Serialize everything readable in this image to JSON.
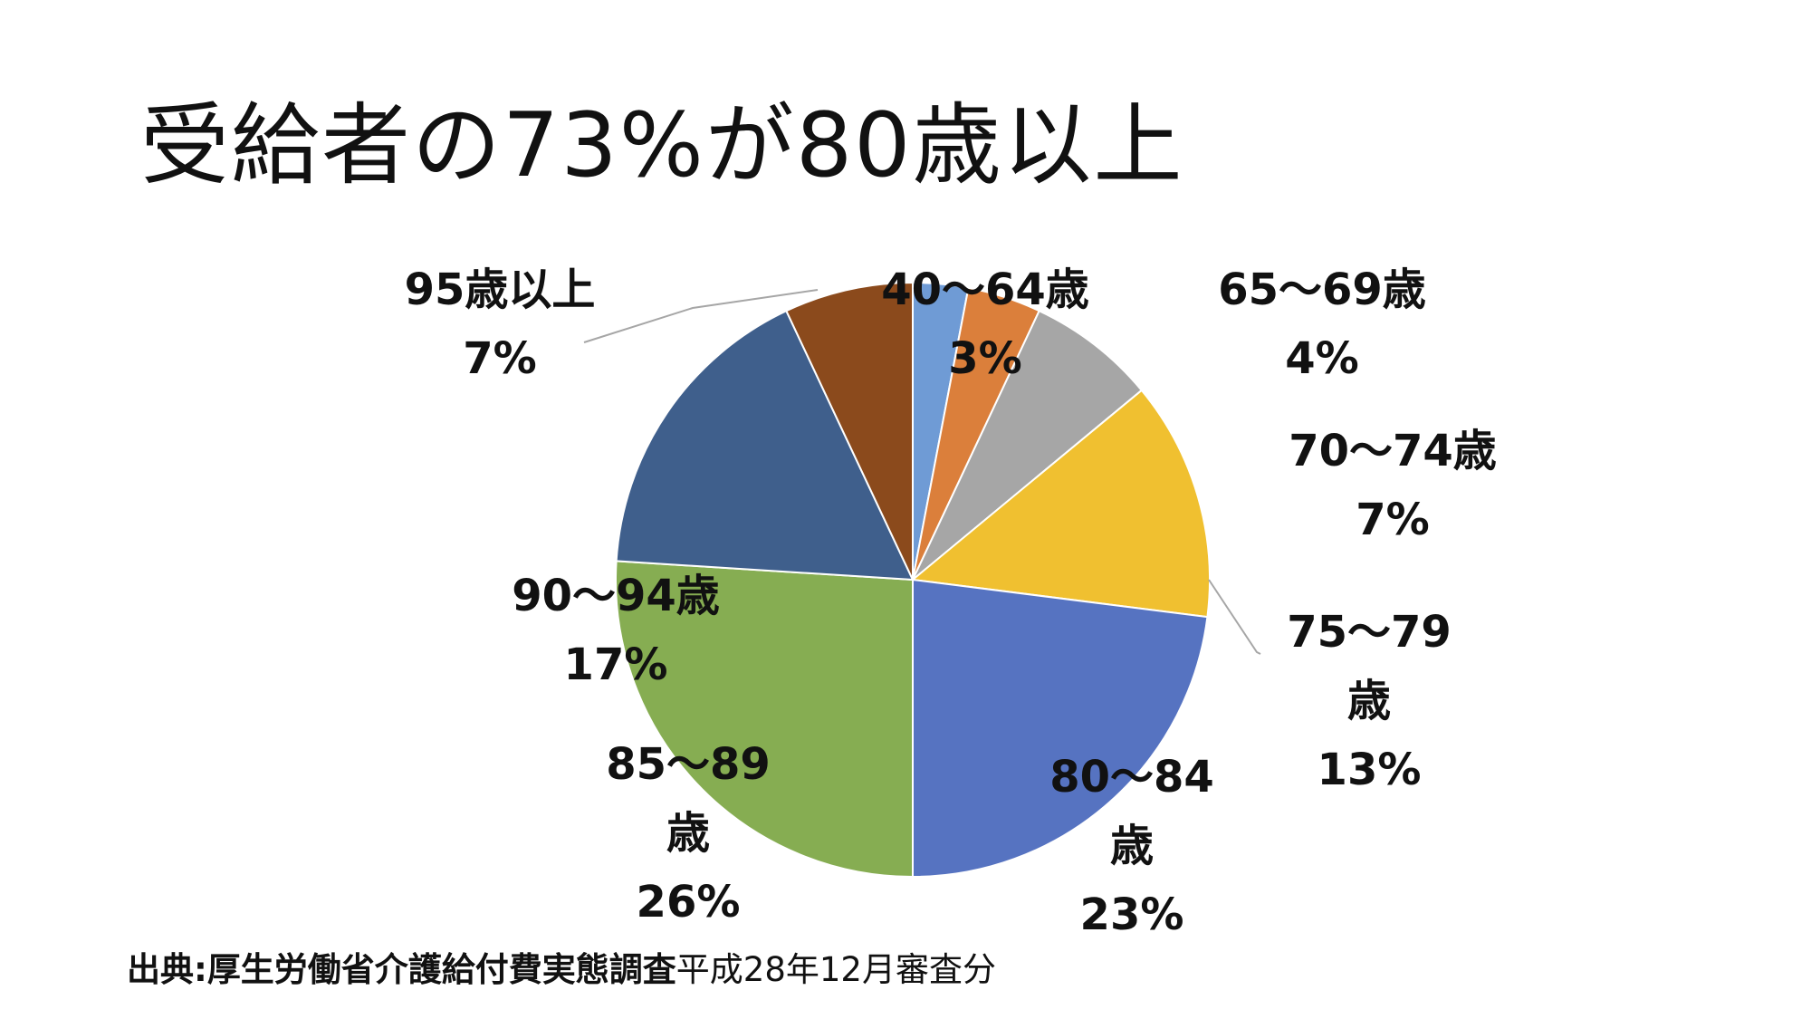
{
  "title": "受給者の73%が80歳以上",
  "source": {
    "prefix": "出典:厚生労働省介護給付費実態調査",
    "suffix": "平成28年12月審査分"
  },
  "chart_data": {
    "type": "pie",
    "start_angle_deg": 0,
    "direction": "clockwise",
    "slices": [
      {
        "label_lines": [
          "40～64歳",
          "3%"
        ],
        "value": 3,
        "color": "#6f9bd5"
      },
      {
        "label_lines": [
          "65～69歳",
          "4%"
        ],
        "value": 4,
        "color": "#db7f3b"
      },
      {
        "label_lines": [
          "70～74歳",
          "7%"
        ],
        "value": 7,
        "color": "#a6a6a6"
      },
      {
        "label_lines": [
          "75～79",
          "歳",
          "13%"
        ],
        "value": 13,
        "color": "#f0c030"
      },
      {
        "label_lines": [
          "80～84",
          "歳",
          "23%"
        ],
        "value": 23,
        "color": "#5673c1"
      },
      {
        "label_lines": [
          "85～89",
          "歳",
          "26%"
        ],
        "value": 26,
        "color": "#86ad52"
      },
      {
        "label_lines": [
          "90～94歳",
          "17%"
        ],
        "value": 17,
        "color": "#3f5f8c"
      },
      {
        "label_lines": [
          "95歳以上",
          "7%"
        ],
        "value": 7,
        "color": "#8b4a1c"
      }
    ]
  }
}
